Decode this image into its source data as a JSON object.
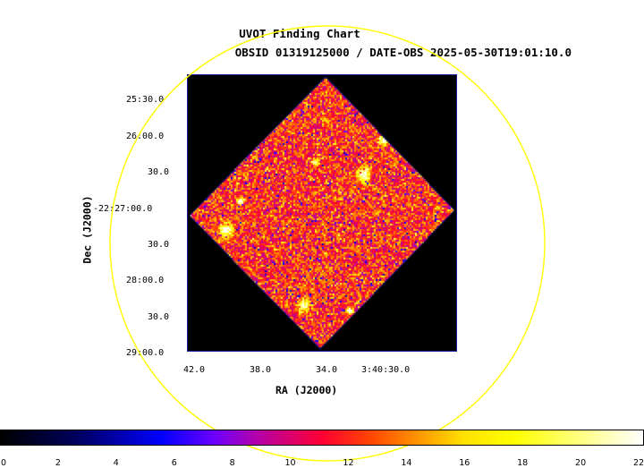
{
  "titles": {
    "main": "UVOT Finding Chart",
    "sub": "OBSID 01319125000 / DATE-OBS 2025-05-30T19:01:10.0"
  },
  "axes": {
    "xlabel": "RA (J2000)",
    "ylabel": "Dec (J2000)",
    "x_ticks": [
      "42.0",
      "38.0",
      "34.0",
      "3:40:30.0"
    ],
    "y_ticks": [
      "25:30.0",
      "26:00.0",
      "30.0",
      "-22:27:00.0",
      "30.0",
      "28:00.0",
      "30.0",
      "29:00.0"
    ]
  },
  "colorbar": {
    "ticks": [
      "0",
      "2",
      "4",
      "6",
      "8",
      "10",
      "12",
      "14",
      "16",
      "18",
      "20",
      "22"
    ],
    "colormap": "heat"
  },
  "overlay": {
    "fov_circle_color": "#ffff00",
    "frame_border_color": "#1a1a9a"
  }
}
